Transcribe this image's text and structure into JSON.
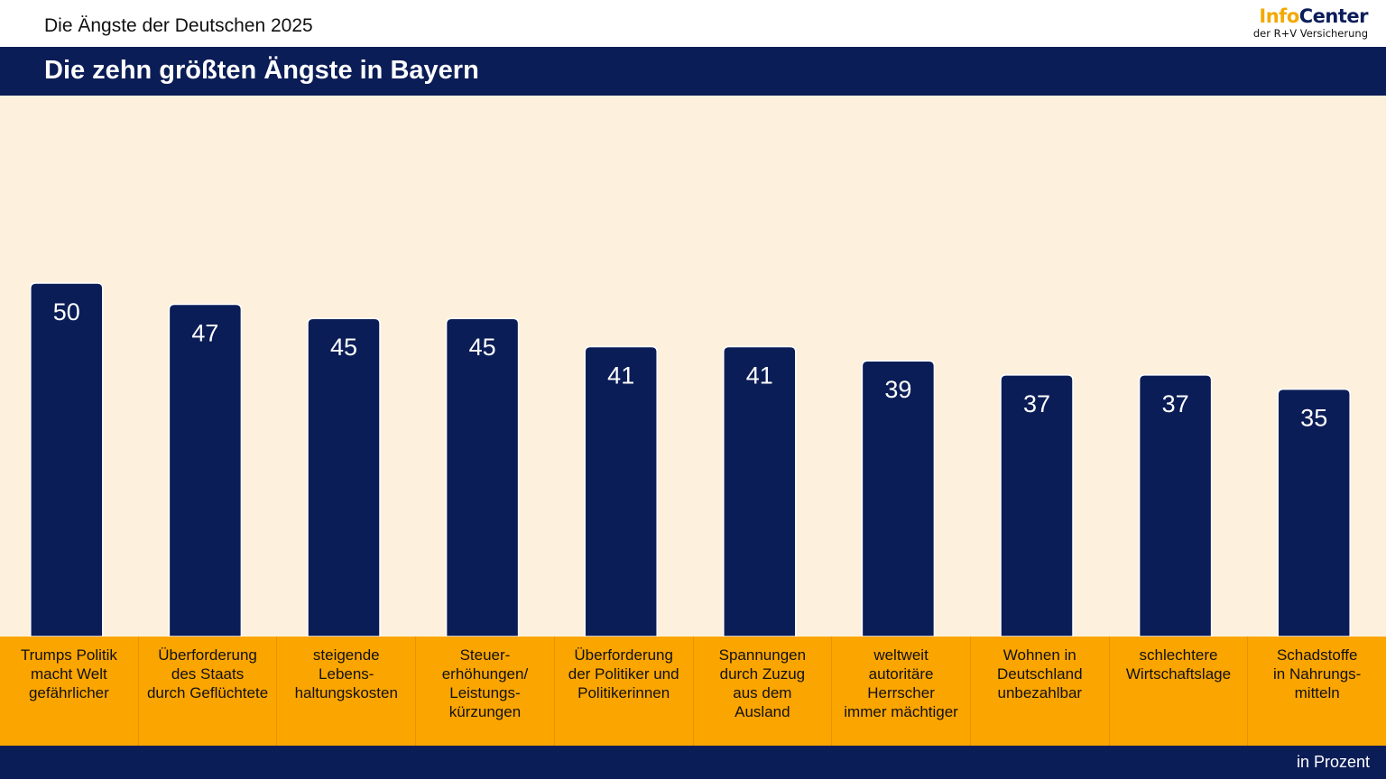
{
  "header": {
    "supertitle": "Die Ängste der Deutschen 2025",
    "title": "Die zehn größten Ängste in Bayern",
    "logo": {
      "word1": "Info",
      "word2": "Center",
      "subline": "der R+V Versicherung"
    }
  },
  "footer": {
    "unit": "in Prozent"
  },
  "colors": {
    "bar": "#0b1d57",
    "label_band": "#fba500",
    "plot_bg": "#fdf0dc",
    "band": "#0b1d57",
    "logo_accent": "#f2a900"
  },
  "chart_data": {
    "type": "bar",
    "title": "Die zehn größten Ängste in Bayern",
    "subtitle": "Die Ängste der Deutschen 2025",
    "xlabel": "",
    "ylabel": "in Prozent",
    "ylim": [
      0,
      76
    ],
    "grid": false,
    "categories": [
      [
        "Trumps Politik",
        "macht Welt",
        "gefährlicher"
      ],
      [
        "Überforderung",
        "des Staats",
        "durch Geflüchtete"
      ],
      [
        "steigende",
        "Lebens-",
        "haltungskosten"
      ],
      [
        "Steuer-",
        "erhöhungen/",
        "Leistungs-",
        "kürzungen"
      ],
      [
        "Überforderung",
        "der Politiker und",
        "Politikerinnen"
      ],
      [
        "Spannungen",
        "durch Zuzug",
        "aus dem",
        "Ausland"
      ],
      [
        "weltweit",
        "autoritäre",
        "Herrscher",
        "immer mächtiger"
      ],
      [
        "Wohnen in",
        "Deutschland",
        "unbezahlbar"
      ],
      [
        "schlechtere",
        "Wirtschaftslage"
      ],
      [
        "Schadstoffe",
        "in Nahrungs-",
        "mitteln"
      ]
    ],
    "values": [
      50,
      47,
      45,
      45,
      41,
      41,
      39,
      37,
      37,
      35
    ]
  }
}
